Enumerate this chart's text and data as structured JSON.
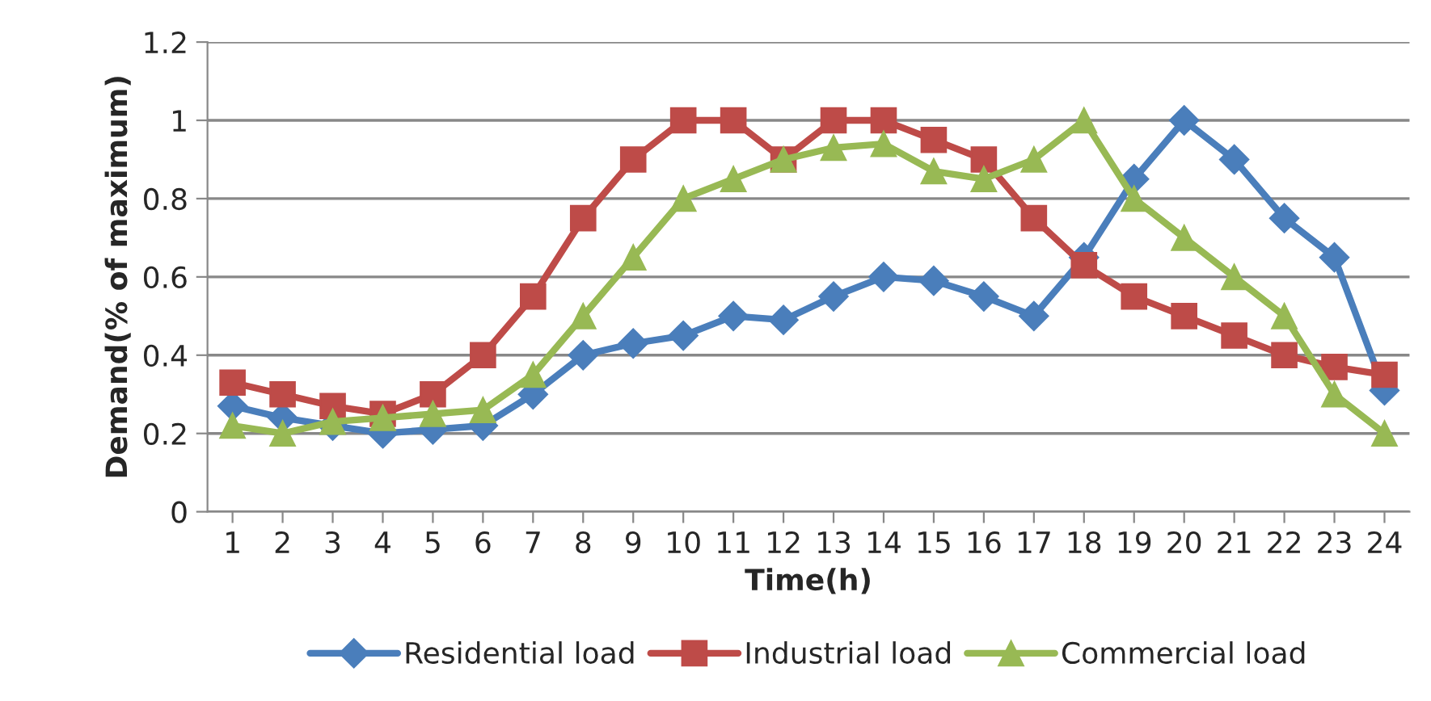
{
  "chart_data": {
    "type": "line",
    "xlabel": "Time(h)",
    "ylabel": "Demand(% of maximum)",
    "categories": [
      "1",
      "2",
      "3",
      "4",
      "5",
      "6",
      "7",
      "8",
      "9",
      "10",
      "11",
      "12",
      "13",
      "14",
      "15",
      "16",
      "17",
      "18",
      "19",
      "20",
      "21",
      "22",
      "23",
      "24"
    ],
    "series": [
      {
        "name": "Residential load",
        "color": "#4a7ebb",
        "marker": "diamond",
        "values": [
          0.27,
          0.24,
          0.22,
          0.2,
          0.21,
          0.22,
          0.3,
          0.4,
          0.43,
          0.45,
          0.5,
          0.49,
          0.55,
          0.6,
          0.59,
          0.55,
          0.5,
          0.65,
          0.85,
          1.0,
          0.9,
          0.75,
          0.65,
          0.31
        ]
      },
      {
        "name": "Industrial load",
        "color": "#be4b48",
        "marker": "square",
        "values": [
          0.33,
          0.3,
          0.27,
          0.25,
          0.3,
          0.4,
          0.55,
          0.75,
          0.9,
          1.0,
          1.0,
          0.9,
          1.0,
          1.0,
          0.95,
          0.9,
          0.75,
          0.63,
          0.55,
          0.5,
          0.45,
          0.4,
          0.37,
          0.35
        ]
      },
      {
        "name": "Commercial load",
        "color": "#98b954",
        "marker": "triangle",
        "values": [
          0.22,
          0.2,
          0.23,
          0.24,
          0.25,
          0.26,
          0.35,
          0.5,
          0.65,
          0.8,
          0.85,
          0.9,
          0.93,
          0.94,
          0.87,
          0.85,
          0.9,
          1.0,
          0.8,
          0.7,
          0.6,
          0.5,
          0.3,
          0.2
        ]
      }
    ],
    "ylim": [
      0,
      1.2
    ],
    "yticks": [
      0,
      0.2,
      0.4,
      0.6,
      0.8,
      1,
      1.2
    ],
    "grid": "y",
    "legend": "bottom",
    "line_style": "solid"
  }
}
